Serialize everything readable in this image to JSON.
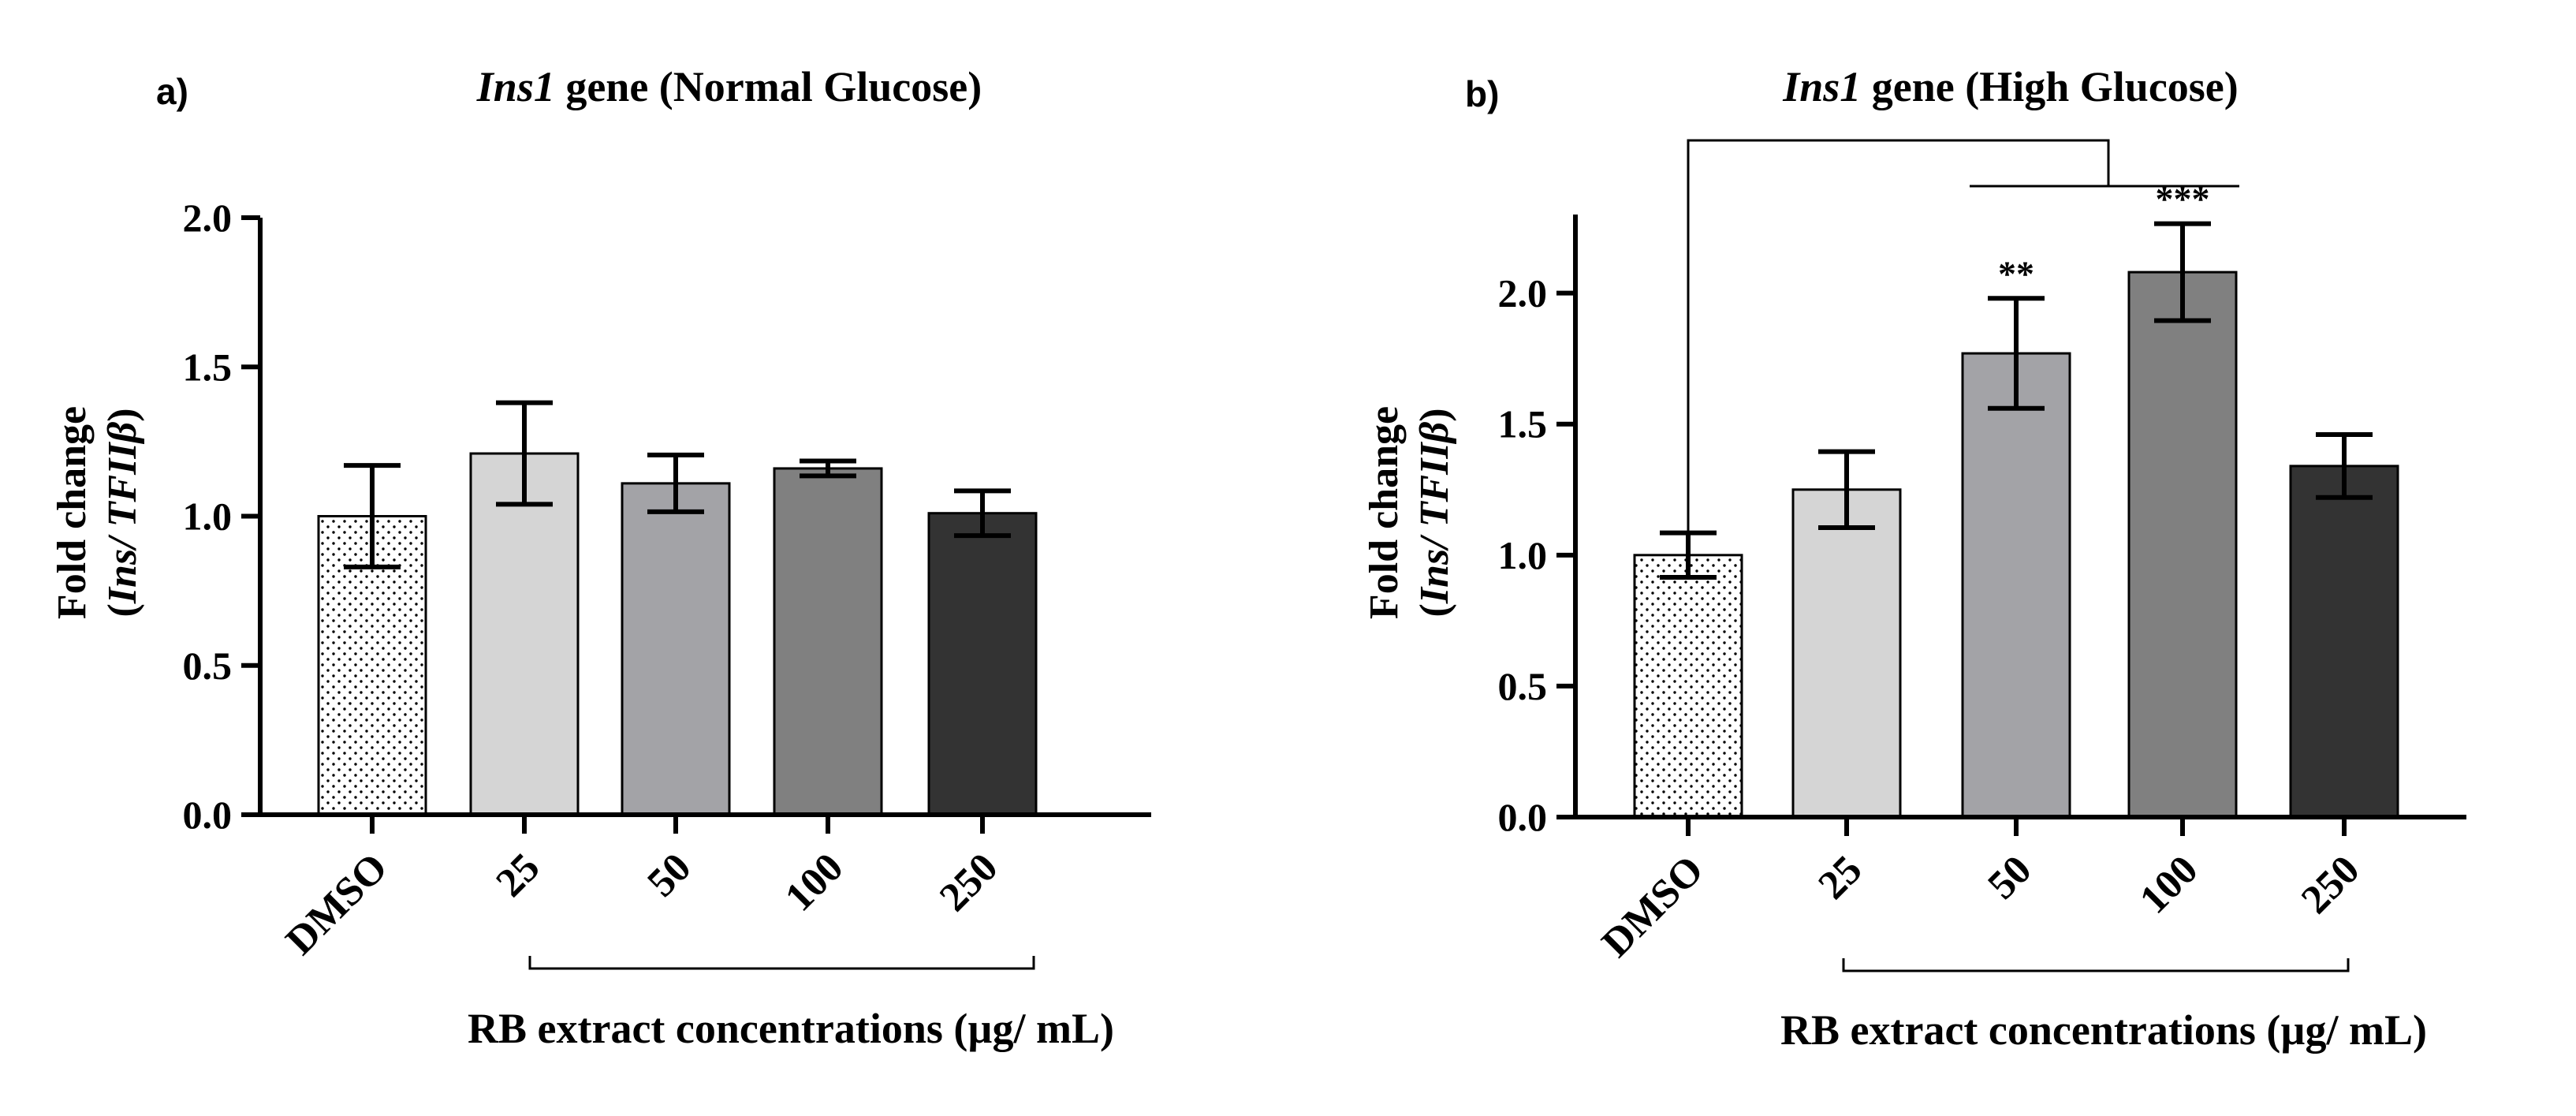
{
  "chart_data": [
    {
      "type": "bar",
      "panel_label": "a)",
      "title_gene": "Ins1",
      "title_rest": " gene (Normal Glucose)",
      "ylabel_line1": "Fold change",
      "ylabel_line2_pre": "(",
      "ylabel_line2_italic": "Ins/ TFIIβ",
      "ylabel_line2_post": ")",
      "xlabel": "RB extract concentrations (µg/ mL)",
      "ylim": [
        0,
        2.0
      ],
      "yticks": [
        0.0,
        0.5,
        1.0,
        1.5,
        2.0
      ],
      "ytick_labels": [
        "0.0",
        "0.5",
        "1.0",
        "1.5",
        "2.0"
      ],
      "categories": [
        "DMSO",
        "25",
        "50",
        "100",
        "250"
      ],
      "values": [
        1.0,
        1.21,
        1.11,
        1.16,
        1.01
      ],
      "errors": [
        0.17,
        0.17,
        0.095,
        0.025,
        0.075
      ],
      "bar_colors": [
        "#ffffff",
        "#d5d5d5",
        "#a3a3a7",
        "#808080",
        "#333333"
      ],
      "significance": []
    },
    {
      "type": "bar",
      "panel_label": "b)",
      "title_gene": "Ins1",
      "title_rest": " gene (High Glucose)",
      "ylabel_line1": "Fold change",
      "ylabel_line2_pre": "(",
      "ylabel_line2_italic": "Ins/ TFIIβ",
      "ylabel_line2_post": ")",
      "xlabel": "RB extract concentrations (µg/ mL)",
      "ylim": [
        0,
        2.3
      ],
      "yticks": [
        0.0,
        0.5,
        1.0,
        1.5,
        2.0
      ],
      "ytick_labels": [
        "0.0",
        "0.5",
        "1.0",
        "1.5",
        "2.0"
      ],
      "categories": [
        "DMSO",
        "25",
        "50",
        "100",
        "250"
      ],
      "values": [
        1.0,
        1.25,
        1.77,
        2.08,
        1.34
      ],
      "errors": [
        0.085,
        0.145,
        0.21,
        0.185,
        0.12
      ],
      "bar_colors": [
        "#ffffff",
        "#d5d5d5",
        "#a3a3a7",
        "#808080",
        "#333333"
      ],
      "significance": [
        "",
        "",
        "**",
        "***",
        ""
      ]
    }
  ]
}
